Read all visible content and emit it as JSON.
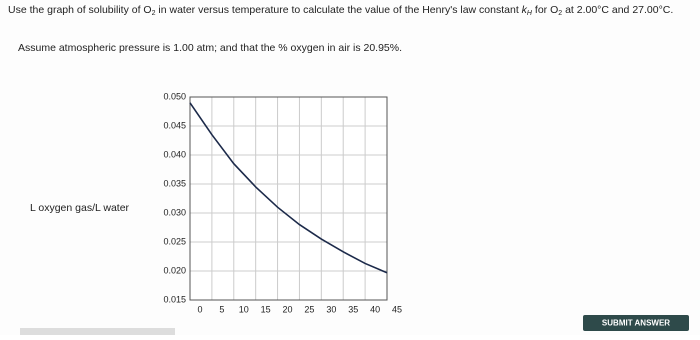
{
  "question": {
    "parts": [
      "Use the graph of solubility of O",
      "2",
      " in water versus temperature to calculate the value of the Henry's law constant ",
      "k",
      "H",
      " for O",
      "2",
      " at 2.00°C and 27.00°C."
    ],
    "assumption": "Assume atmospheric pressure is 1.00 atm; and that the % oxygen in air is 20.95%."
  },
  "chart_data": {
    "type": "line",
    "ylabel": "L oxygen gas/L water",
    "x": [
      0,
      5,
      10,
      15,
      20,
      25,
      30,
      35,
      40,
      45
    ],
    "values": [
      0.049,
      0.0435,
      0.0385,
      0.0345,
      0.031,
      0.028,
      0.0255,
      0.0233,
      0.0213,
      0.0197
    ],
    "color": "#1c2a4a",
    "xlim": [
      0,
      45
    ],
    "xticks": [
      0,
      5,
      10,
      15,
      20,
      25,
      30,
      35,
      40,
      45
    ],
    "ylim": [
      0.015,
      0.05
    ],
    "yticks": [
      {
        "value": 0.015,
        "label": "0.015"
      },
      {
        "value": 0.02,
        "label": "0.020"
      },
      {
        "value": 0.025,
        "label": "0.025"
      },
      {
        "value": 0.03,
        "label": "0.030"
      },
      {
        "value": 0.035,
        "label": "0.035"
      },
      {
        "value": 0.04,
        "label": "0.040"
      },
      {
        "value": 0.045,
        "label": "0.045"
      },
      {
        "value": 0.05,
        "label": "0.050"
      }
    ],
    "grid": true
  },
  "button": "SUBMIT ANSWER"
}
